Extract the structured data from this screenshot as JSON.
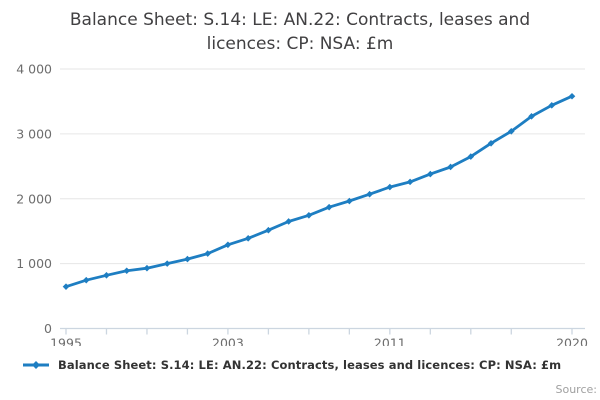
{
  "header": {
    "title": "Balance Sheet: S.14: LE: AN.22: Contracts, leases and licences: CP: NSA: £m"
  },
  "legend": {
    "label": "Balance Sheet: S.14: LE: AN.22: Contracts, leases and licences: CP: NSA: £m"
  },
  "footer": {
    "source_label": "Source:"
  },
  "icons": {
    "legend_line_marker": "blue-line-with-diamond"
  },
  "chart_data": {
    "type": "line",
    "title": "Balance Sheet: S.14: LE: AN.22: Contracts, leases and licences: CP: NSA: £m",
    "xlabel": "",
    "ylabel": "",
    "x": [
      1995,
      1996,
      1997,
      1998,
      1999,
      2000,
      2001,
      2002,
      2003,
      2004,
      2005,
      2006,
      2007,
      2008,
      2009,
      2010,
      2011,
      2012,
      2013,
      2014,
      2015,
      2016,
      2017,
      2018,
      2019,
      2020
    ],
    "series": [
      {
        "name": "Balance Sheet: S.14: LE: AN.22: Contracts, leases and licences: CP: NSA: £m",
        "values": [
          645,
          745,
          820,
          890,
          930,
          1000,
          1070,
          1155,
          1290,
          1390,
          1515,
          1650,
          1745,
          1870,
          1965,
          2070,
          2180,
          2260,
          2380,
          2490,
          2650,
          2855,
          3040,
          3270,
          3440,
          3580
        ]
      }
    ],
    "ylim": [
      0,
      4000
    ],
    "y_ticks": [
      {
        "value": 0,
        "label": "0"
      },
      {
        "value": 1000,
        "label": "1 000"
      },
      {
        "value": 2000,
        "label": "2 000"
      },
      {
        "value": 3000,
        "label": "3 000"
      },
      {
        "value": 4000,
        "label": "4 000"
      }
    ],
    "x_labeled_ticks": [
      1995,
      2003,
      2011,
      2020
    ],
    "x_minor_tick_years": [
      1995,
      1997,
      1999,
      2001,
      2003,
      2005,
      2007,
      2009,
      2011,
      2013,
      2015,
      2017,
      2020
    ],
    "grid": "horizontal",
    "legend_position": "bottom-left",
    "marker_shape": "diamond",
    "colors": {
      "line": "#1e7ec2",
      "grid": "#e6e6e6",
      "axis": "#ccd6e0",
      "tick_label": "#6d6d6d",
      "title": "#414042",
      "legend_text": "#333333",
      "source_text": "#a0a0a0"
    }
  }
}
